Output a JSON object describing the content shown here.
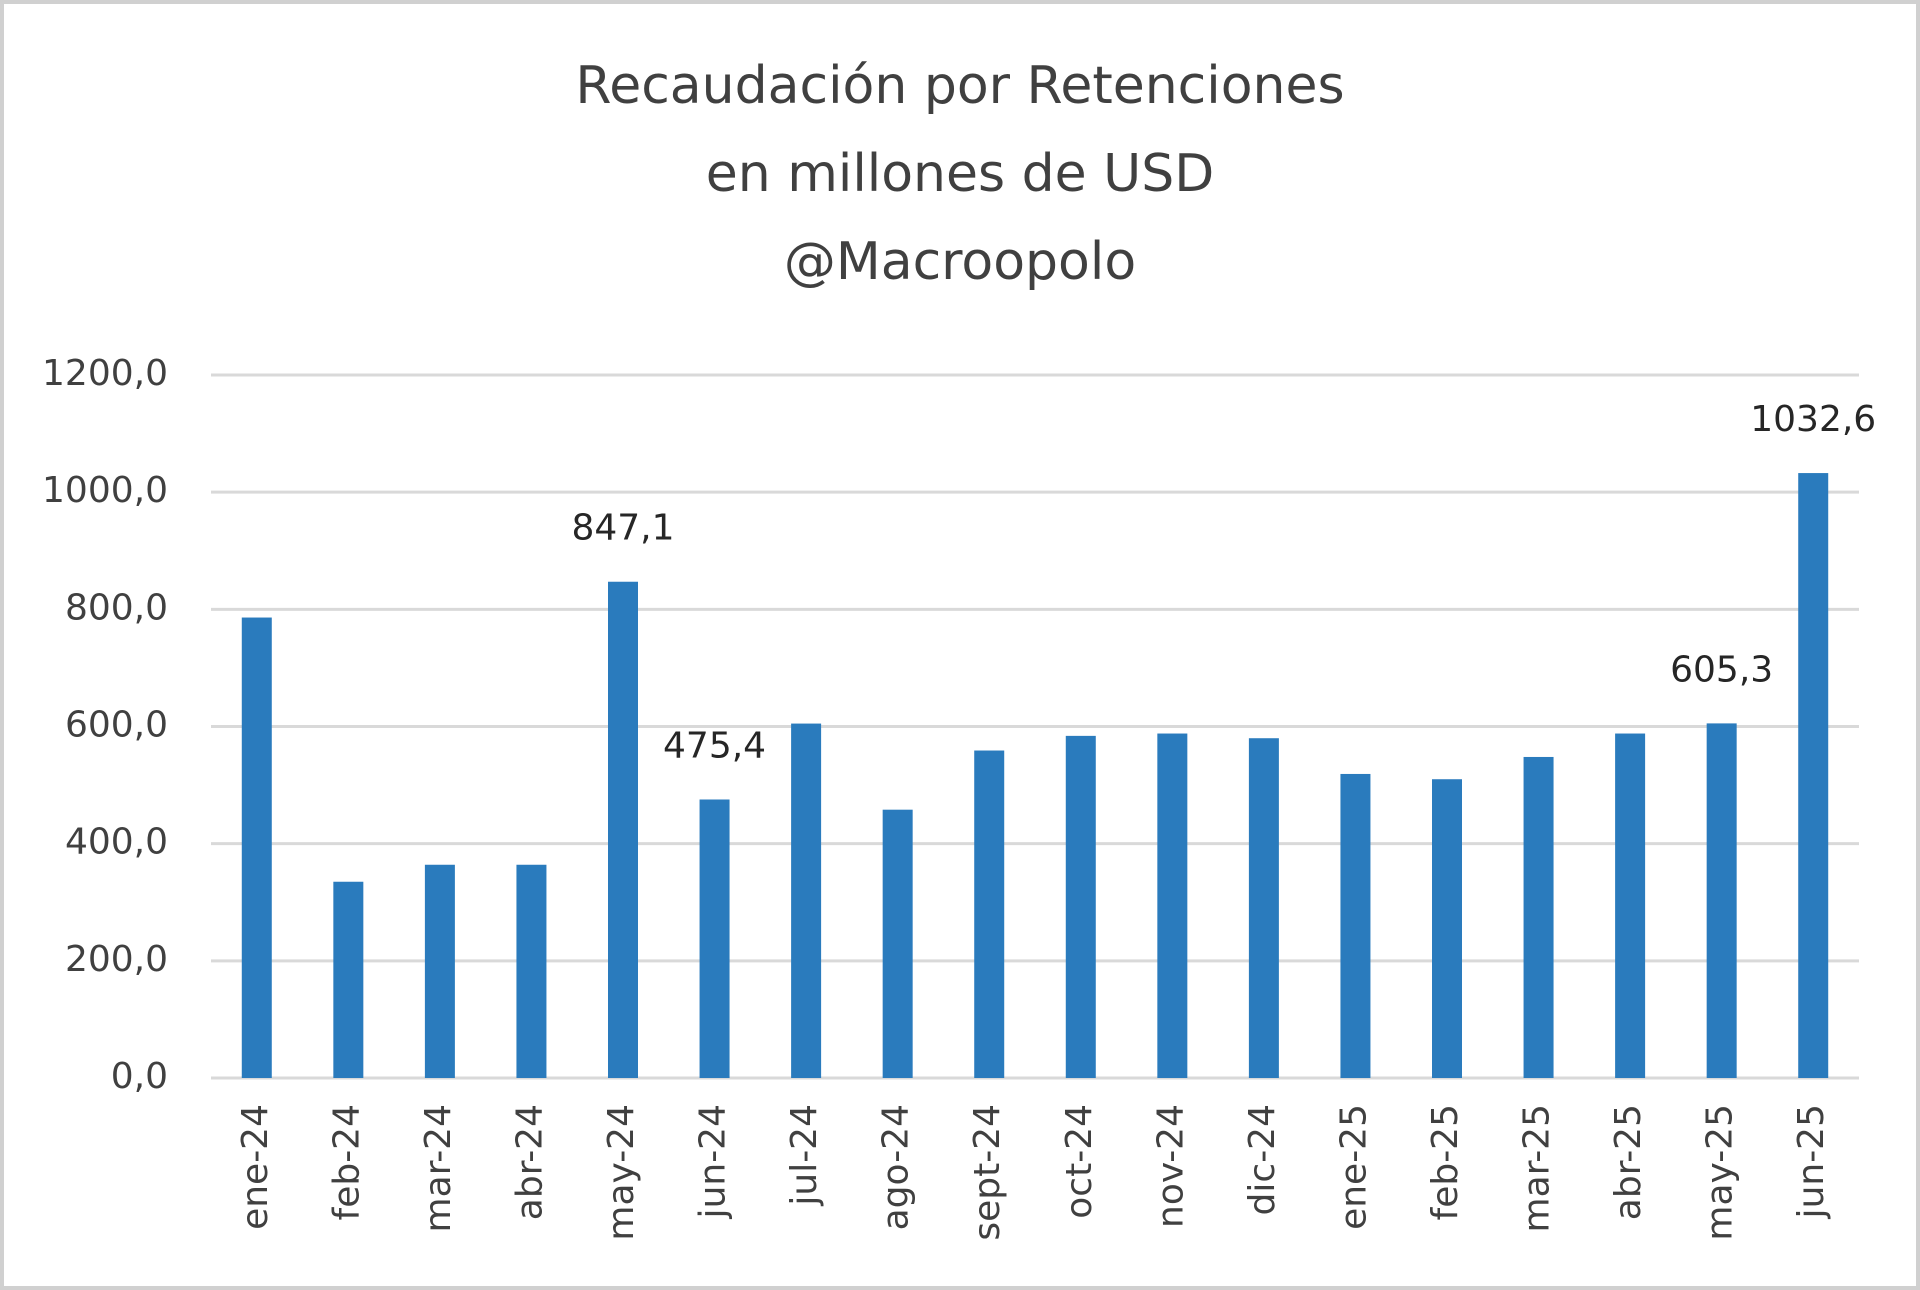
{
  "chart_data": {
    "type": "bar",
    "title": [
      "Recaudación por Retenciones",
      "en millones de USD",
      "@Macroopolo"
    ],
    "categories": [
      "ene-24",
      "feb-24",
      "mar-24",
      "abr-24",
      "may-24",
      "jun-24",
      "jul-24",
      "ago-24",
      "sept-24",
      "oct-24",
      "nov-24",
      "dic-24",
      "ene-25",
      "feb-25",
      "mar-25",
      "abr-25",
      "may-25",
      "jun-25"
    ],
    "values": [
      786,
      335,
      364,
      364,
      847.1,
      475.4,
      605,
      458,
      559,
      584,
      588,
      580,
      519,
      510,
      548,
      588,
      605.3,
      1032.6
    ],
    "value_labels": [
      null,
      null,
      null,
      null,
      "847,1",
      "475,4",
      null,
      null,
      null,
      null,
      null,
      null,
      null,
      null,
      null,
      null,
      "605,3",
      "1032,6"
    ],
    "color": "#2a7bbd",
    "ylim": [
      0,
      1200
    ],
    "yticks": [
      {
        "value": 0,
        "label": "0,0"
      },
      {
        "value": 200,
        "label": "200,0"
      },
      {
        "value": 400,
        "label": "400,0"
      },
      {
        "value": 600,
        "label": "600,0"
      },
      {
        "value": 800,
        "label": "800,0"
      },
      {
        "value": 1000,
        "label": "1000,0"
      },
      {
        "value": 1200,
        "label": "1200,0"
      }
    ],
    "grid": true
  }
}
